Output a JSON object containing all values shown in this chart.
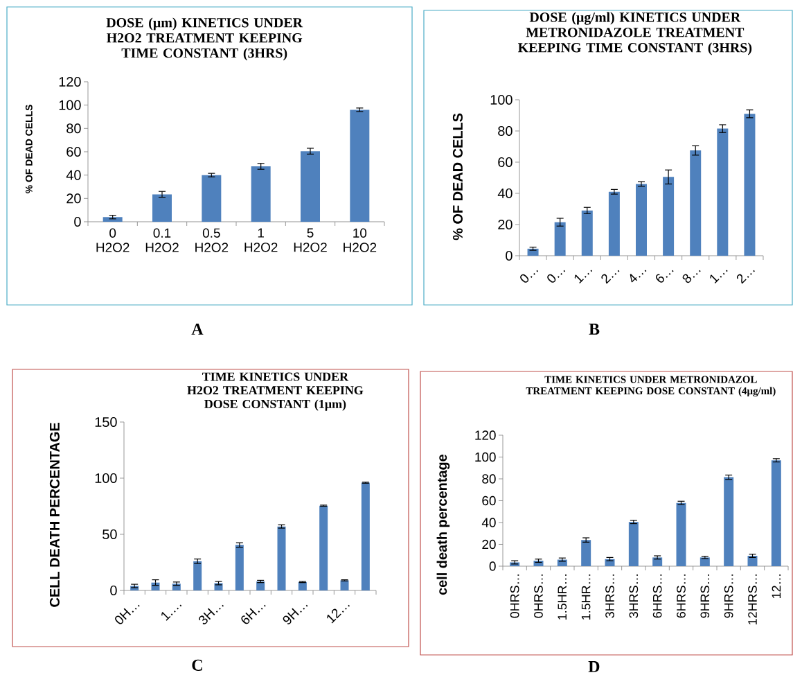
{
  "chart_data": [
    {
      "type": "bar",
      "title": "DOSE (µm) KINETICS UNDER H2O2 TREATMENT KEEPING TIME CONSTANT (3HRS)",
      "ylabel": "% OF DEAD CELLS",
      "categories": [
        "0 H2O2",
        "0.1 H2O2",
        "0.5 H2O2",
        "1 H2O2",
        "5 H2O2",
        "10 H2O2"
      ],
      "values": [
        4,
        23.5,
        40,
        47.5,
        60.5,
        96
      ],
      "errors": [
        1.5,
        2.5,
        1.5,
        2.5,
        2.5,
        1.5
      ],
      "color": "#4f81bd",
      "ylim": [
        0,
        120
      ],
      "yticks": [
        0,
        20,
        40,
        60,
        80,
        100,
        120
      ],
      "annotations": [
        "A"
      ]
    },
    {
      "type": "bar",
      "title": "DOSE (µg/ml) KINETICS UNDER METRONIDAZOLE TREATMENT KEEPING TIME CONSTANT (3HRS)",
      "ylabel": "% OF DEAD CELLS",
      "categories": [
        "0…",
        "0…",
        "1…",
        "2…",
        "4…",
        "6…",
        "8…",
        "1…",
        "2…"
      ],
      "values": [
        4.5,
        21.5,
        29,
        41,
        46,
        50.5,
        67.5,
        81.5,
        91
      ],
      "errors": [
        1,
        2.5,
        2,
        1.5,
        1.5,
        4.5,
        3,
        2.5,
        2.5
      ],
      "color": "#4f81bd",
      "ylim": [
        0,
        100
      ],
      "yticks": [
        0,
        20,
        40,
        60,
        80,
        100
      ],
      "annotations": [
        "B"
      ]
    },
    {
      "type": "bar",
      "title": "TIME KINETICS UNDER H2O2 TREATMENT KEEPING DOSE CONSTANT (1µm)",
      "ylabel": "CELL DEATH PERCENTAGE",
      "categories": [
        "0H…",
        null,
        "1.…",
        null,
        "3H…",
        null,
        "6H…",
        null,
        "9H…",
        null,
        "12…",
        null
      ],
      "values": [
        4,
        7,
        6,
        26,
        6.5,
        40.5,
        8,
        57,
        7.5,
        75.5,
        9,
        96
      ],
      "errors": [
        1.5,
        2.5,
        1.5,
        2,
        1.5,
        2,
        1,
        1.5,
        0.5,
        0.5,
        0.5,
        0.5
      ],
      "color": "#4f81bd",
      "ylim": [
        0,
        150
      ],
      "yticks": [
        0,
        50,
        100,
        150
      ],
      "annotations": [
        "C"
      ]
    },
    {
      "type": "bar",
      "title": "TIME KINETICS UNDER METRONIDAZOL TREATMENT KEEPING DOSE CONSTANT (4µg/ml)",
      "ylabel": "cell death percentage",
      "categories": [
        "0HRS…",
        "0HRS…",
        "1.5HR…",
        "1.5HR…",
        "3HRS…",
        "3HRS…",
        "6HRS…",
        "6HRS…",
        "9HRS…",
        "9HRS…",
        "12HRS…",
        "12…"
      ],
      "values": [
        3.5,
        5,
        6,
        24,
        6.5,
        40.5,
        8,
        58,
        8,
        81.5,
        9.5,
        97
      ],
      "errors": [
        1.5,
        1.5,
        1.5,
        2,
        1.5,
        1.5,
        1.5,
        1.5,
        1,
        2,
        1.5,
        1.5
      ],
      "color": "#4f81bd",
      "ylim": [
        0,
        120
      ],
      "yticks": [
        0,
        20,
        40,
        60,
        80,
        100,
        120
      ],
      "annotations": [
        "D"
      ]
    }
  ]
}
